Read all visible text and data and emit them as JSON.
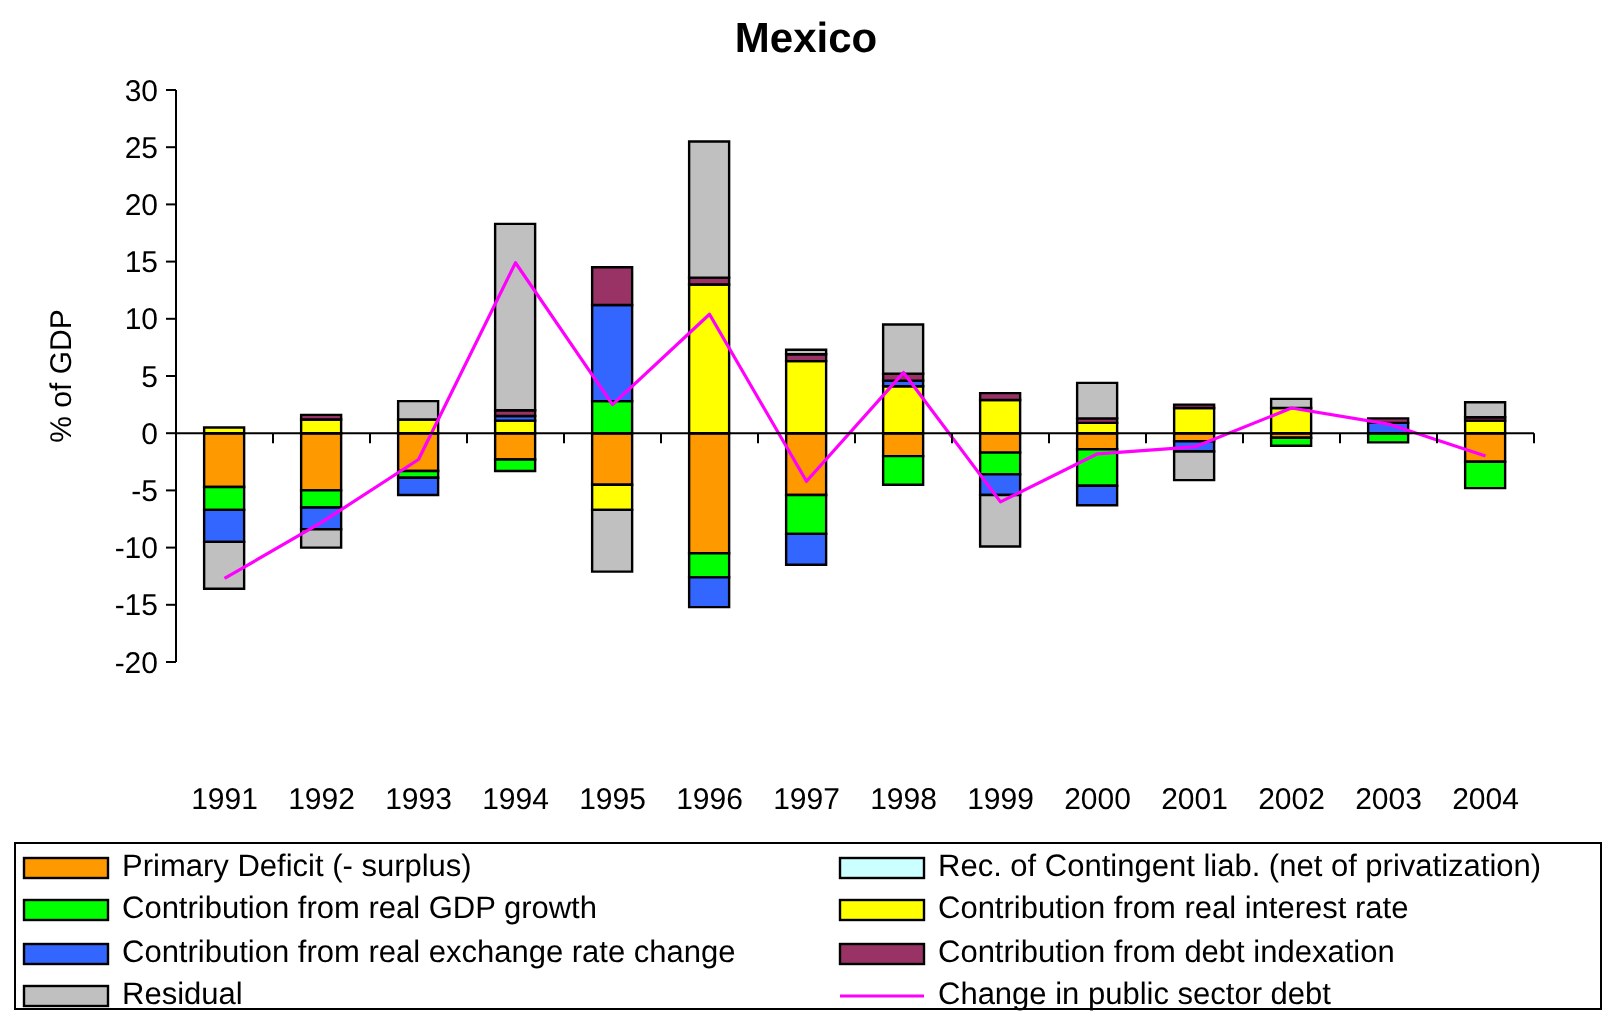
{
  "chart_data": {
    "type": "bar",
    "title": "Mexico",
    "ylabel": "% of GDP",
    "stacked": true,
    "legend": "bottom",
    "marker": "none",
    "categories": [
      "1991",
      "1992",
      "1993",
      "1994",
      "1995",
      "1996",
      "1997",
      "1998",
      "1999",
      "2000",
      "2001",
      "2002",
      "2003",
      "2004"
    ],
    "ylim": [
      -20,
      30
    ],
    "yticks": [
      -20,
      -15,
      -10,
      -5,
      0,
      5,
      10,
      15,
      20,
      25,
      30
    ],
    "series": [
      {
        "name": "Primary Deficit (- surplus)",
        "color": "#ff9900",
        "values": [
          -4.7,
          -5.0,
          -3.3,
          -2.3,
          -4.5,
          -10.5,
          -5.4,
          -2.0,
          -1.7,
          -1.4,
          -0.7,
          -0.4,
          null,
          -2.5
        ]
      },
      {
        "name": "Rec. of Contingent liab. (net of privatization)",
        "color": "#ccffff",
        "values": [
          null,
          null,
          null,
          null,
          null,
          null,
          null,
          null,
          null,
          null,
          null,
          null,
          null,
          null
        ]
      },
      {
        "name": "Contribution from real GDP growth",
        "color": "#00ff00",
        "values": [
          -2.0,
          -1.5,
          -0.6,
          -1.0,
          2.8,
          -2.1,
          -3.4,
          -2.5,
          -1.9,
          -3.2,
          null,
          -0.7,
          -0.8,
          -2.3
        ]
      },
      {
        "name": "Contribution from real interest rate",
        "color": "#ffff00",
        "values": [
          0.5,
          1.2,
          1.2,
          1.1,
          -2.2,
          13.0,
          6.3,
          4.1,
          2.9,
          0.9,
          2.2,
          2.2,
          null,
          1.1
        ]
      },
      {
        "name": "Contribution from real exchange rate change",
        "color": "#3366ff",
        "values": [
          -2.8,
          -1.9,
          -1.5,
          0.4,
          8.4,
          -2.6,
          -2.7,
          0.5,
          -1.8,
          -1.7,
          -0.9,
          null,
          0.9,
          null
        ]
      },
      {
        "name": "Contribution from debt indexation",
        "color": "#993366",
        "values": [
          null,
          0.4,
          null,
          0.5,
          3.3,
          0.6,
          0.6,
          0.6,
          0.6,
          0.4,
          0.3,
          null,
          0.4,
          0.3
        ]
      },
      {
        "name": "Residual",
        "color": "#c0c0c0",
        "values": [
          -4.1,
          -1.6,
          1.6,
          16.3,
          -5.4,
          11.9,
          0.4,
          4.3,
          -4.5,
          3.1,
          -2.5,
          0.8,
          null,
          1.3
        ]
      },
      {
        "name": "Change in public sector debt",
        "type": "line",
        "color": "#ff00ff",
        "values": [
          -12.7,
          -7.8,
          -2.3,
          14.9,
          2.5,
          10.4,
          -4.2,
          5.3,
          -6.0,
          -1.8,
          -1.2,
          2.2,
          0.8,
          -2.0
        ]
      }
    ]
  }
}
